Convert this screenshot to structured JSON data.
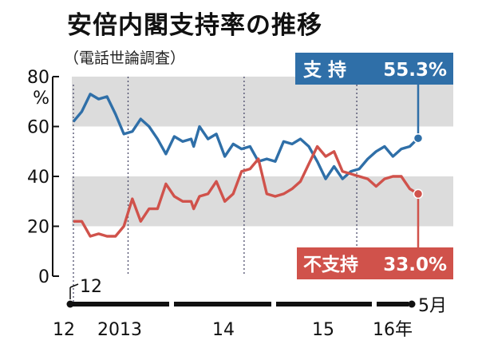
{
  "title": "安倍内閣支持率の推移",
  "subtitle": "（電話世論調査）",
  "colors": {
    "support": "#2f6fa8",
    "nonsupport": "#d0524b",
    "band": "#dcdcdc"
  },
  "chart_data": {
    "type": "line",
    "title": "安倍内閣支持率の推移",
    "subtitle": "（電話世論調査）",
    "yunit": "%",
    "ylim": [
      0,
      80
    ],
    "yticks": [
      "0",
      "20",
      "40",
      "60",
      "80"
    ],
    "x_start_label": "12",
    "x_end_label": "5月",
    "x_callout": "12",
    "years": [
      "2013",
      "14",
      "15",
      "16年"
    ],
    "grid": "horizontal bands",
    "series": [
      {
        "name": "支持",
        "label": "支 持",
        "last_value_label": "55.3%",
        "x": [
          0,
          1,
          2,
          3,
          4,
          5,
          6,
          7,
          8,
          9,
          10,
          11,
          12,
          13,
          14,
          14.3,
          15,
          16,
          17,
          18,
          19,
          20,
          21,
          22,
          23,
          24,
          25,
          26,
          27,
          28,
          29,
          30,
          31,
          32,
          33,
          34,
          35,
          36,
          37,
          38,
          39,
          40,
          41
        ],
        "values": [
          62,
          66,
          73,
          71,
          72,
          65,
          57,
          58,
          63,
          60,
          55,
          49,
          56,
          54,
          55,
          52,
          60,
          55,
          57,
          48,
          53,
          51,
          52,
          46,
          47,
          46,
          54,
          53,
          55,
          52,
          46,
          39,
          44,
          39,
          42,
          43,
          47,
          50,
          52,
          48,
          51,
          52,
          55.3
        ]
      },
      {
        "name": "不支持",
        "label": "不支持",
        "last_value_label": "33.0%",
        "x": [
          0,
          1,
          2,
          3,
          4,
          5,
          6,
          7,
          8,
          9,
          10,
          11,
          12,
          13,
          14,
          14.3,
          15,
          16,
          17,
          18,
          19,
          20,
          21,
          22,
          23,
          24,
          25,
          26,
          27,
          28,
          29,
          30,
          31,
          32,
          33,
          34,
          35,
          36,
          37,
          38,
          39,
          40,
          41
        ],
        "values": [
          22,
          22,
          16,
          17,
          16,
          16,
          20,
          31,
          22,
          27,
          27,
          37,
          32,
          30,
          30,
          27,
          32,
          33,
          38,
          30,
          33,
          42,
          43,
          47,
          33,
          32,
          33,
          35,
          38,
          45,
          52,
          48,
          50,
          42,
          41,
          40,
          39,
          36,
          39,
          40,
          40,
          35,
          33.0
        ]
      }
    ]
  }
}
